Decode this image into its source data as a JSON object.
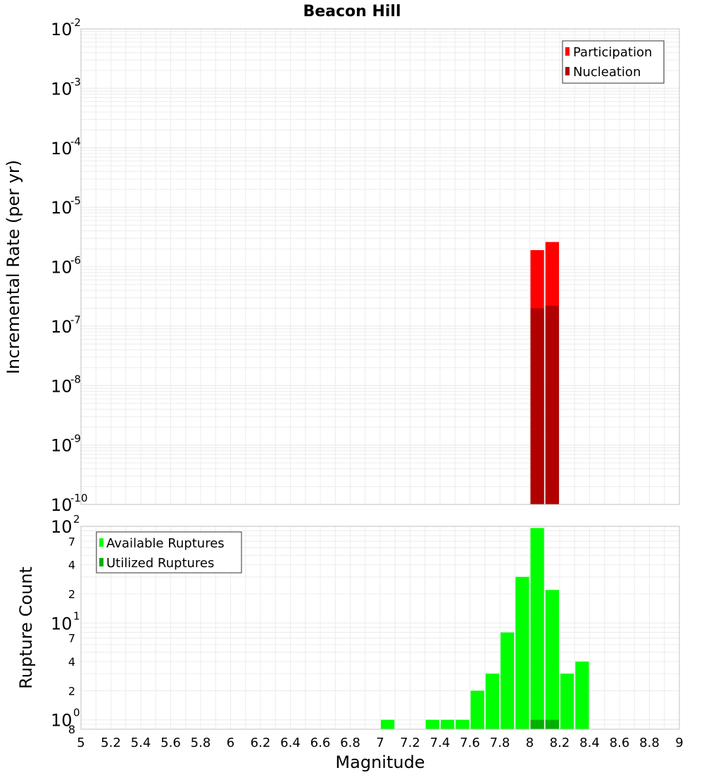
{
  "chart_data": [
    {
      "type": "bar",
      "title": "Beacon Hill",
      "xlabel": "Magnitude",
      "ylabel": "Incremental Rate (per yr)",
      "xlim": [
        5,
        9
      ],
      "ylim": [
        1e-10,
        0.01
      ],
      "yscale": "log",
      "y_tick_exponents": [
        -2,
        -3,
        -4,
        -5,
        -6,
        -7,
        -8,
        -9,
        -10
      ],
      "bar_width": 0.1,
      "grid": true,
      "legend_position": "top-right",
      "series": [
        {
          "name": "Participation",
          "color": "#ff0000",
          "points": [
            {
              "x": 8.05,
              "y": 1.9e-06
            },
            {
              "x": 8.15,
              "y": 2.6e-06
            }
          ]
        },
        {
          "name": "Nucleation",
          "color": "#b00000",
          "points": [
            {
              "x": 8.05,
              "y": 2e-07
            },
            {
              "x": 8.15,
              "y": 2.2e-07
            }
          ]
        }
      ]
    },
    {
      "type": "bar",
      "xlabel": "Magnitude",
      "ylabel": "Rupture Count",
      "xlim": [
        5,
        9
      ],
      "ylim": [
        0.8,
        100
      ],
      "yscale": "log",
      "y_major_ticks": [
        {
          "base": "10",
          "exp": "2",
          "value": 100
        },
        {
          "base": "10",
          "exp": "1",
          "value": 10
        },
        {
          "base": "10",
          "exp": "0",
          "value": 1
        }
      ],
      "y_minor_ticks": [
        {
          "label": "7",
          "value": 70
        },
        {
          "label": "4",
          "value": 40
        },
        {
          "label": "2",
          "value": 20
        },
        {
          "label": "7",
          "value": 7
        },
        {
          "label": "4",
          "value": 4
        },
        {
          "label": "2",
          "value": 2
        },
        {
          "label": "8",
          "value": 0.8
        }
      ],
      "x_ticks": [
        "5",
        "5.2",
        "5.4",
        "5.6",
        "5.8",
        "6",
        "6.2",
        "6.4",
        "6.6",
        "6.8",
        "7",
        "7.2",
        "7.4",
        "7.6",
        "7.8",
        "8",
        "8.2",
        "8.4",
        "8.6",
        "8.8",
        "9"
      ],
      "bar_width": 0.1,
      "grid": true,
      "legend_position": "top-left",
      "series": [
        {
          "name": "Available Ruptures",
          "color": "#00ff00",
          "points": [
            {
              "x": 7.05,
              "y": 1
            },
            {
              "x": 7.35,
              "y": 1
            },
            {
              "x": 7.45,
              "y": 1
            },
            {
              "x": 7.55,
              "y": 1
            },
            {
              "x": 7.65,
              "y": 2
            },
            {
              "x": 7.75,
              "y": 3
            },
            {
              "x": 7.85,
              "y": 8
            },
            {
              "x": 7.95,
              "y": 30
            },
            {
              "x": 8.05,
              "y": 96
            },
            {
              "x": 8.15,
              "y": 22
            },
            {
              "x": 8.25,
              "y": 3
            },
            {
              "x": 8.35,
              "y": 4
            }
          ]
        },
        {
          "name": "Utilized Ruptures",
          "color": "#00b000",
          "points": [
            {
              "x": 8.05,
              "y": 1
            },
            {
              "x": 8.15,
              "y": 1
            }
          ]
        }
      ]
    }
  ]
}
